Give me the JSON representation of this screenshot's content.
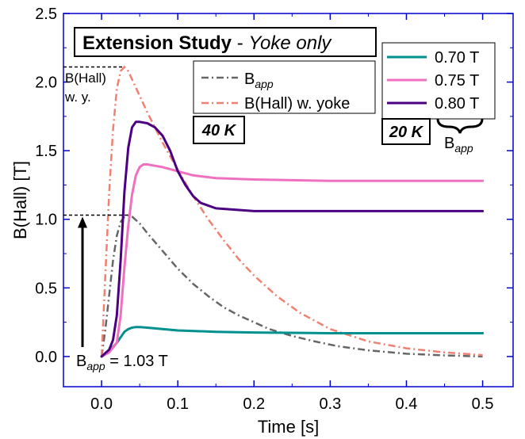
{
  "chart_data": {
    "type": "line",
    "title": "Extension Study",
    "title_suffix": "Yoke only",
    "xlabel": "Time [s]",
    "ylabel": "B(Hall) [T]",
    "xlim": [
      -0.05,
      0.54
    ],
    "ylim": [
      -0.22,
      2.5
    ],
    "x_ticks": [
      0.0,
      0.1,
      0.2,
      0.3,
      0.4,
      0.5
    ],
    "x_tick_labels": [
      "0.0",
      "0.1",
      "0.2",
      "0.3",
      "0.4",
      "0.5"
    ],
    "y_ticks": [
      0.0,
      0.5,
      1.0,
      1.5,
      2.0,
      2.5
    ],
    "y_tick_labels": [
      "0.0",
      "0.5",
      "1.0",
      "1.5",
      "2.0",
      "2.5"
    ],
    "grid": false,
    "frame_color": "#0000cc",
    "series": [
      {
        "name": "B",
        "name_sub": "app",
        "color": "#666666",
        "style": "dashdot",
        "group": "40 K",
        "x": [
          0.0,
          0.005,
          0.01,
          0.015,
          0.02,
          0.025,
          0.03,
          0.035,
          0.04,
          0.05,
          0.06,
          0.08,
          0.1,
          0.12,
          0.14,
          0.16,
          0.18,
          0.2,
          0.22,
          0.25,
          0.28,
          0.31,
          0.35,
          0.4,
          0.45,
          0.5
        ],
        "y": [
          0.0,
          0.2,
          0.45,
          0.7,
          0.88,
          0.98,
          1.02,
          1.03,
          1.02,
          0.97,
          0.9,
          0.77,
          0.64,
          0.53,
          0.44,
          0.36,
          0.3,
          0.25,
          0.2,
          0.15,
          0.11,
          0.075,
          0.045,
          0.02,
          0.008,
          0.0
        ]
      },
      {
        "name": "B(Hall) w. yoke",
        "color": "#f08070",
        "style": "dashdot",
        "group": "40 K",
        "x": [
          0.0,
          0.005,
          0.01,
          0.015,
          0.02,
          0.025,
          0.03,
          0.035,
          0.04,
          0.05,
          0.06,
          0.07,
          0.08,
          0.1,
          0.12,
          0.14,
          0.16,
          0.18,
          0.2,
          0.23,
          0.26,
          0.3,
          0.35,
          0.4,
          0.45,
          0.5
        ],
        "y": [
          0.0,
          0.6,
          1.2,
          1.65,
          1.95,
          2.08,
          2.11,
          2.08,
          2.02,
          1.9,
          1.78,
          1.67,
          1.56,
          1.36,
          1.17,
          1.0,
          0.85,
          0.71,
          0.59,
          0.44,
          0.32,
          0.2,
          0.11,
          0.06,
          0.03,
          0.01
        ]
      },
      {
        "name": "0.70 T",
        "color": "#009090",
        "style": "solid",
        "group": "20 K",
        "x": [
          0.0,
          0.01,
          0.015,
          0.02,
          0.025,
          0.03,
          0.035,
          0.04,
          0.045,
          0.05,
          0.06,
          0.08,
          0.1,
          0.15,
          0.2,
          0.3,
          0.4,
          0.5
        ],
        "y": [
          0.0,
          0.04,
          0.07,
          0.1,
          0.14,
          0.18,
          0.2,
          0.21,
          0.215,
          0.215,
          0.21,
          0.2,
          0.19,
          0.18,
          0.175,
          0.17,
          0.17,
          0.17
        ]
      },
      {
        "name": "0.75 T",
        "color": "#f070c0",
        "style": "solid",
        "group": "20 K",
        "x": [
          0.0,
          0.01,
          0.02,
          0.025,
          0.03,
          0.035,
          0.04,
          0.045,
          0.05,
          0.055,
          0.06,
          0.07,
          0.08,
          0.1,
          0.12,
          0.15,
          0.2,
          0.3,
          0.4,
          0.5
        ],
        "y": [
          0.0,
          0.03,
          0.1,
          0.3,
          0.65,
          0.95,
          1.18,
          1.32,
          1.38,
          1.4,
          1.4,
          1.39,
          1.38,
          1.35,
          1.32,
          1.3,
          1.29,
          1.28,
          1.28,
          1.28
        ]
      },
      {
        "name": "0.80 T",
        "color": "#4b0082",
        "style": "solid",
        "group": "20 K",
        "x": [
          0.0,
          0.01,
          0.015,
          0.02,
          0.025,
          0.03,
          0.035,
          0.04,
          0.045,
          0.05,
          0.06,
          0.07,
          0.08,
          0.09,
          0.1,
          0.11,
          0.12,
          0.13,
          0.15,
          0.2,
          0.3,
          0.4,
          0.5
        ],
        "y": [
          0.0,
          0.05,
          0.12,
          0.3,
          0.7,
          1.2,
          1.52,
          1.67,
          1.71,
          1.71,
          1.7,
          1.67,
          1.61,
          1.5,
          1.35,
          1.25,
          1.17,
          1.12,
          1.08,
          1.06,
          1.06,
          1.06,
          1.06
        ]
      }
    ],
    "annotations": {
      "peak_label_line1": "B(Hall)",
      "peak_label_line2": "w. y.",
      "peak_value": 2.11,
      "bapp_peak_value": 1.03,
      "arrow_label_prefix": "B",
      "arrow_label_sub": "app",
      "arrow_label_suffix": " = 1.03 T",
      "temp_40": "40 K",
      "temp_20": "20 K",
      "brace_label": "B",
      "brace_label_sub": "app"
    }
  }
}
